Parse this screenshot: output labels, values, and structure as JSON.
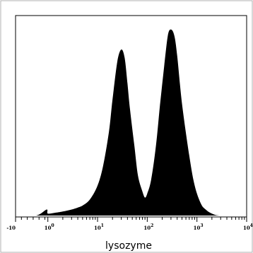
{
  "chart_data": {
    "type": "area",
    "title": "",
    "xlabel": "lysozyme",
    "ylabel": "",
    "xscale": "biexponential",
    "grid": false,
    "legend": "none",
    "fill_color": "#000000",
    "xlim": [
      -10,
      10000
    ],
    "x_ticks": [
      {
        "value": -10,
        "label": "-10"
      },
      {
        "value": 1,
        "label": "10",
        "exp": "0"
      },
      {
        "value": 10,
        "label": "10",
        "exp": "1"
      },
      {
        "value": 100,
        "label": "10",
        "exp": "2"
      },
      {
        "value": 1000,
        "label": "10",
        "exp": "3"
      },
      {
        "value": 10000,
        "label": "10",
        "exp": "4"
      }
    ],
    "ylim": [
      0,
      1
    ],
    "series": [
      {
        "x": [
          -10,
          -3,
          0.6,
          1,
          1.5,
          2,
          3,
          4,
          5,
          7,
          10,
          13,
          17,
          20,
          25,
          30,
          35,
          40,
          45,
          55,
          65,
          80,
          90,
          100,
          120,
          150,
          180,
          220,
          260,
          300,
          350,
          400,
          500,
          700,
          900,
          1200,
          1500,
          2000,
          3000,
          10000
        ],
        "y": [
          0.0,
          0.0,
          0.03,
          0.01,
          0.015,
          0.02,
          0.03,
          0.04,
          0.05,
          0.08,
          0.15,
          0.25,
          0.42,
          0.58,
          0.77,
          0.83,
          0.79,
          0.66,
          0.53,
          0.35,
          0.2,
          0.12,
          0.09,
          0.11,
          0.18,
          0.35,
          0.55,
          0.75,
          0.9,
          0.93,
          0.9,
          0.8,
          0.56,
          0.3,
          0.15,
          0.06,
          0.03,
          0.01,
          0.0,
          0.0
        ]
      }
    ]
  }
}
